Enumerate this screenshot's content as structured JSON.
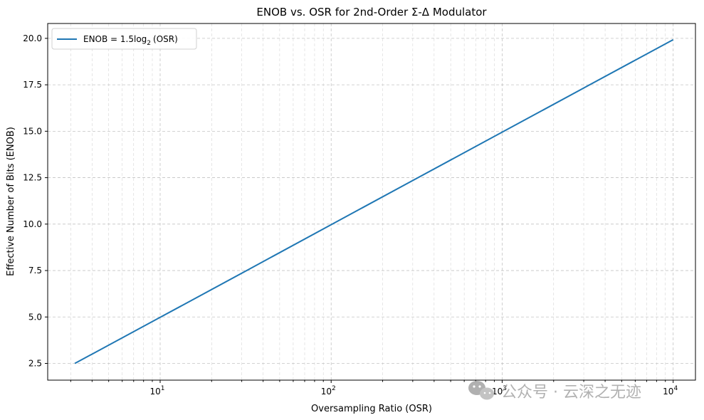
{
  "chart_data": {
    "type": "line",
    "title": "ENOB vs. OSR for 2nd-Order Σ-Δ Modulator",
    "xlabel": "Oversampling Ratio (OSR)",
    "ylabel": "Effective Number of Bits (ENOB)",
    "x_scale": "log",
    "xlim": [
      2.2,
      13500
    ],
    "ylim": [
      1.6,
      20.8
    ],
    "x_ticks": [
      {
        "value": 10,
        "base": "10",
        "exp": "1"
      },
      {
        "value": 100,
        "base": "10",
        "exp": "2"
      },
      {
        "value": 1000,
        "base": "10",
        "exp": "3"
      },
      {
        "value": 10000,
        "base": "10",
        "exp": "4"
      }
    ],
    "y_ticks": [
      {
        "value": 2.5,
        "label": "2.5"
      },
      {
        "value": 5.0,
        "label": "5.0"
      },
      {
        "value": 7.5,
        "label": "7.5"
      },
      {
        "value": 10.0,
        "label": "10.0"
      },
      {
        "value": 12.5,
        "label": "12.5"
      },
      {
        "value": 15.0,
        "label": "15.0"
      },
      {
        "value": 17.5,
        "label": "17.5"
      },
      {
        "value": 20.0,
        "label": "20.0"
      }
    ],
    "grid": true,
    "legend_position": "upper-left",
    "series": [
      {
        "name": "ENOB = 1.5log2(OSR)",
        "color": "#1f77b4",
        "x": [
          3.17,
          10,
          31.6,
          100,
          316,
          1000,
          3162,
          10000
        ],
        "y": [
          2.5,
          4.98,
          7.47,
          9.97,
          12.46,
          14.95,
          17.44,
          19.93
        ]
      }
    ],
    "legend": {
      "prefix": "ENOB = 1.5log",
      "sub": "2",
      "suffix": "(OSR)"
    }
  },
  "watermark": {
    "text": "公众号 · 云深之无迹",
    "icon": "wechat-icon"
  }
}
